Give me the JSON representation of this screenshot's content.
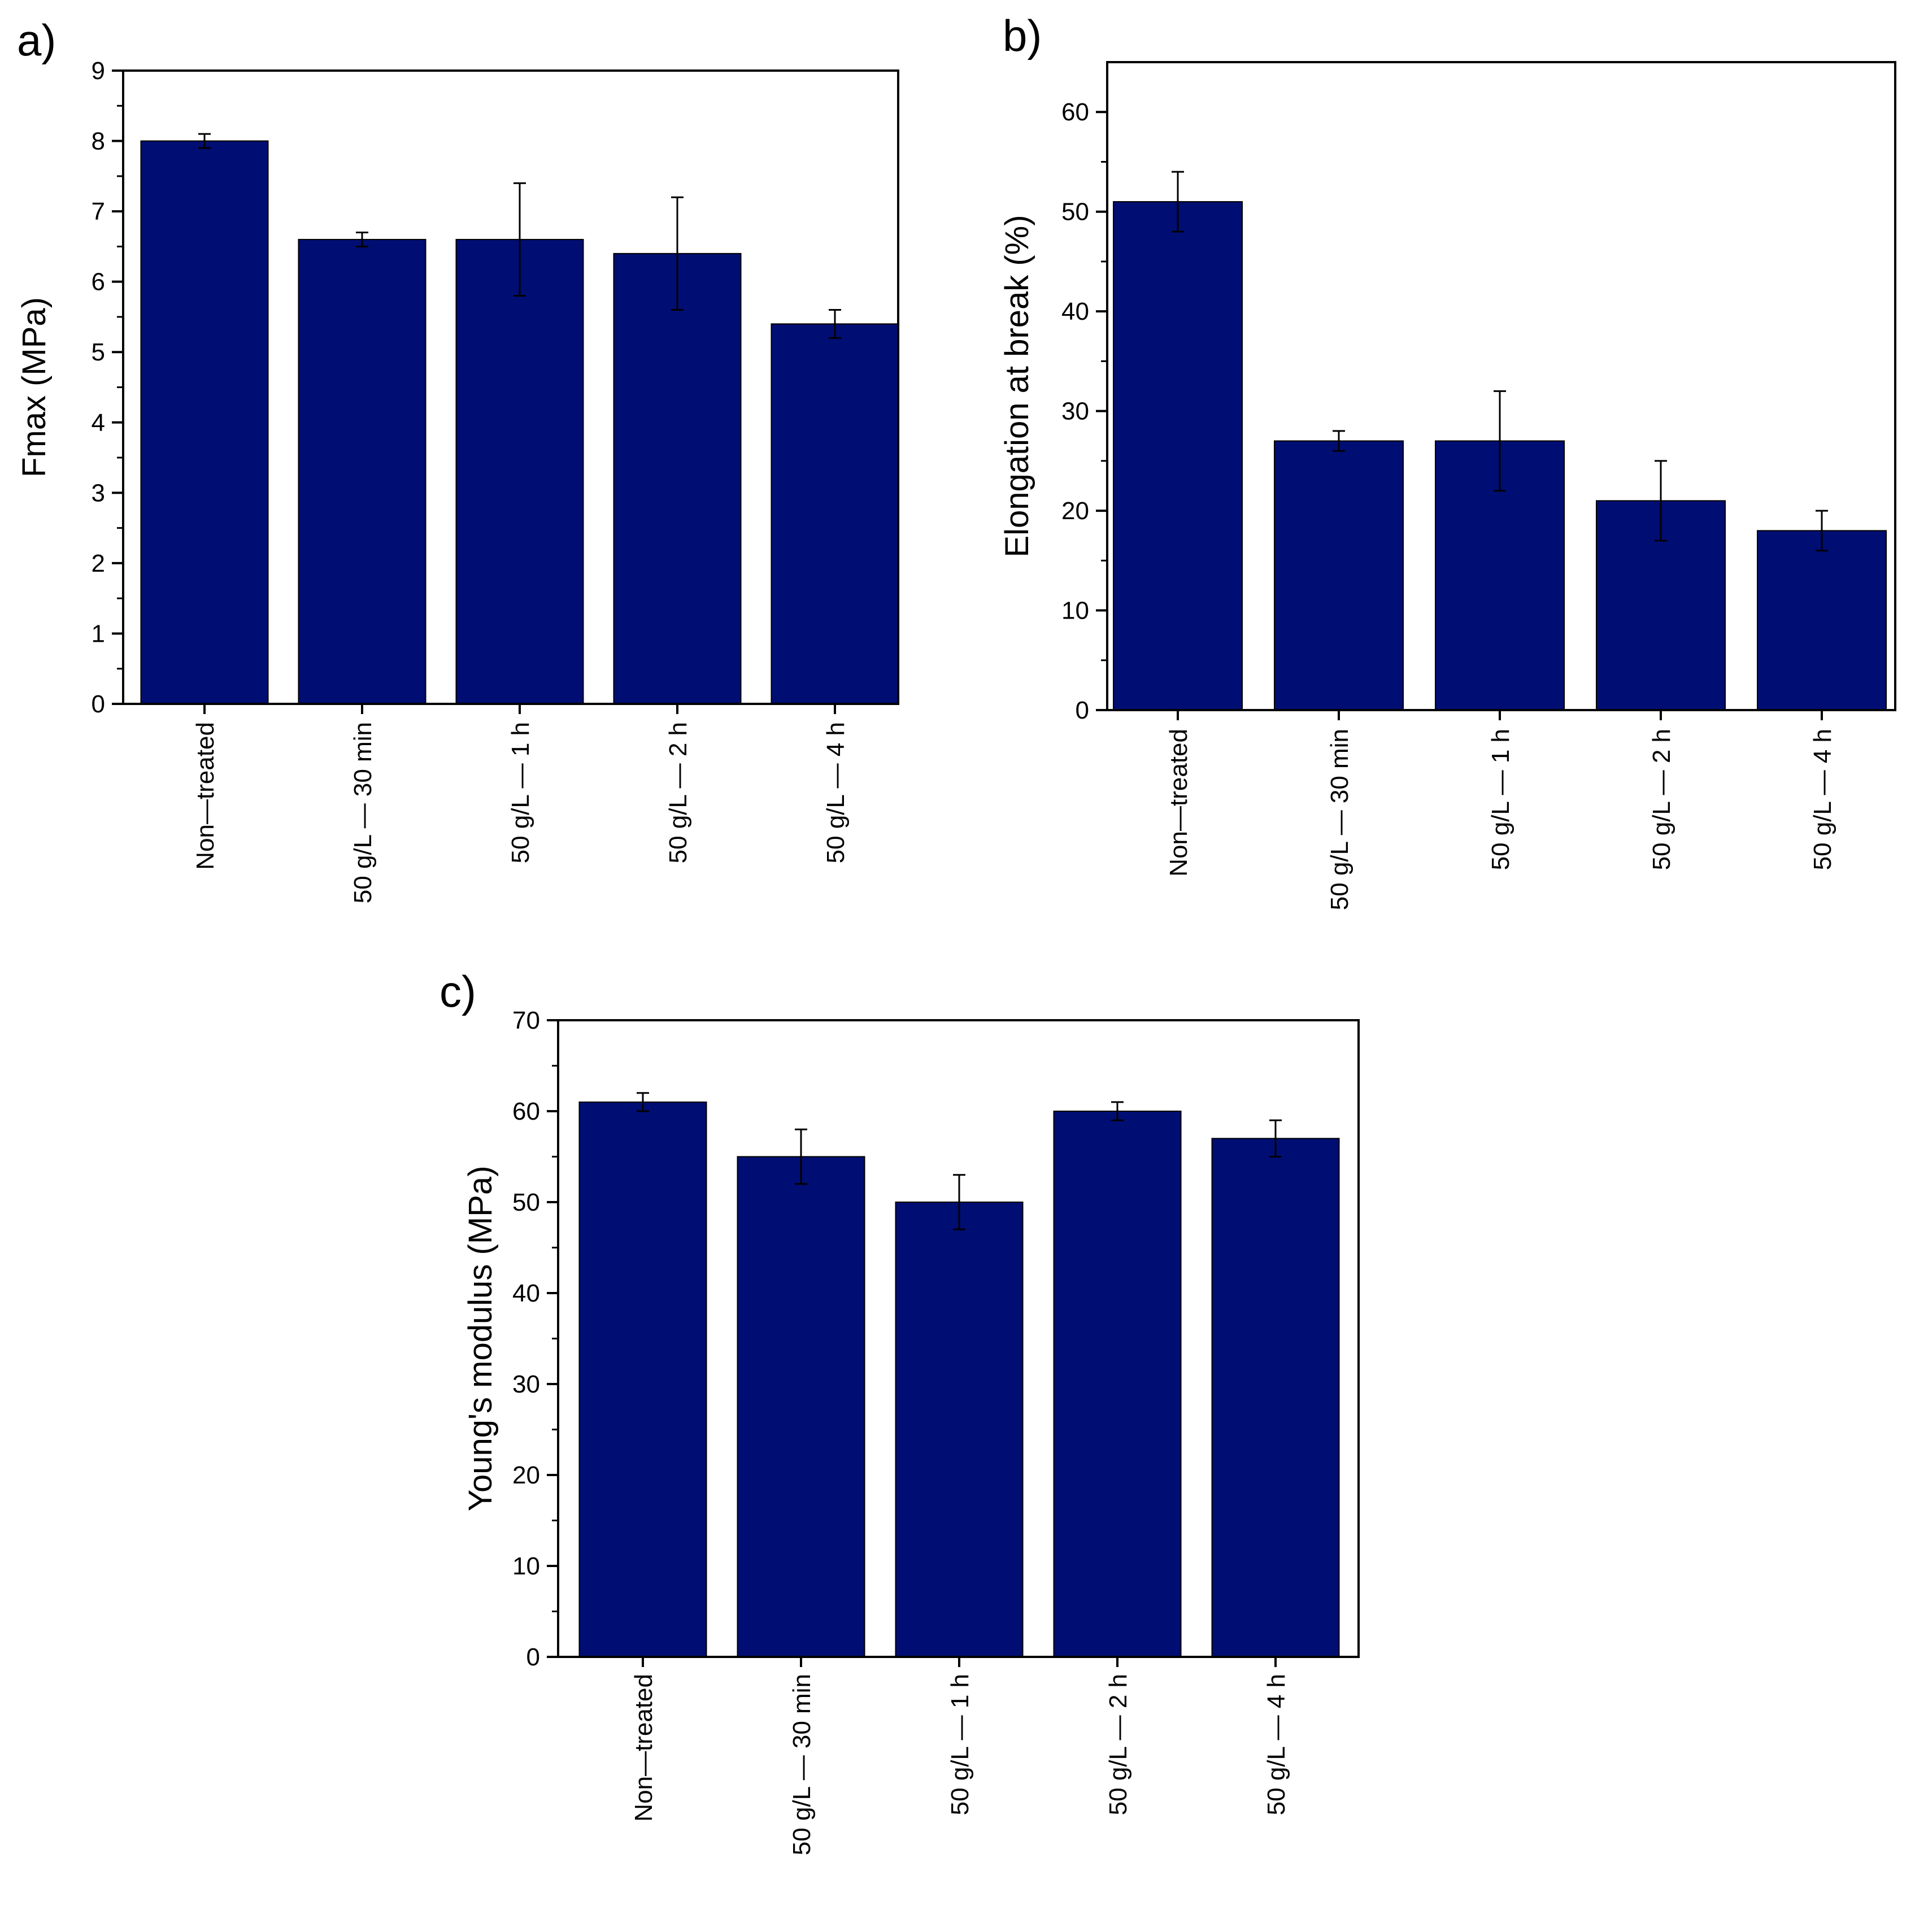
{
  "chart_data": [
    {
      "panel": "a)",
      "type": "bar",
      "categories": [
        "Non—treated",
        "50 g/L — 30 min",
        "50 g/L — 1 h",
        "50 g/L — 2 h",
        "50 g/L — 4 h"
      ],
      "values": [
        8.0,
        6.6,
        6.6,
        6.4,
        5.4
      ],
      "errors": [
        0.1,
        0.1,
        0.8,
        0.8,
        0.2
      ],
      "ylabel": "Fmax (MPa)",
      "xlabel": "",
      "ylim": [
        0,
        9
      ],
      "yticks": [
        0,
        1,
        2,
        3,
        4,
        5,
        6,
        7,
        8,
        9
      ]
    },
    {
      "panel": "b)",
      "type": "bar",
      "categories": [
        "Non—treated",
        "50 g/L — 30 min",
        "50 g/L — 1 h",
        "50 g/L — 2 h",
        "50 g/L — 4 h"
      ],
      "values": [
        51,
        27,
        27,
        21,
        18
      ],
      "errors": [
        3,
        1,
        5,
        4,
        2
      ],
      "ylabel": "Elongation at break (%)",
      "xlabel": "",
      "ylim": [
        0,
        65
      ],
      "yticks": [
        0,
        10,
        20,
        30,
        40,
        50,
        60
      ]
    },
    {
      "panel": "c)",
      "type": "bar",
      "categories": [
        "Non—treated",
        "50 g/L — 30 min",
        "50 g/L — 1 h",
        "50 g/L — 2 h",
        "50 g/L — 4 h"
      ],
      "values": [
        61,
        55,
        50,
        60,
        57
      ],
      "errors": [
        1,
        3,
        3,
        1,
        2
      ],
      "ylabel": "Young's modulus (MPa)",
      "xlabel": "",
      "ylim": [
        0,
        70
      ],
      "yticks": [
        0,
        10,
        20,
        30,
        40,
        50,
        60,
        70
      ]
    }
  ],
  "colors": {
    "bar": "#000e73",
    "axis": "#000000"
  }
}
